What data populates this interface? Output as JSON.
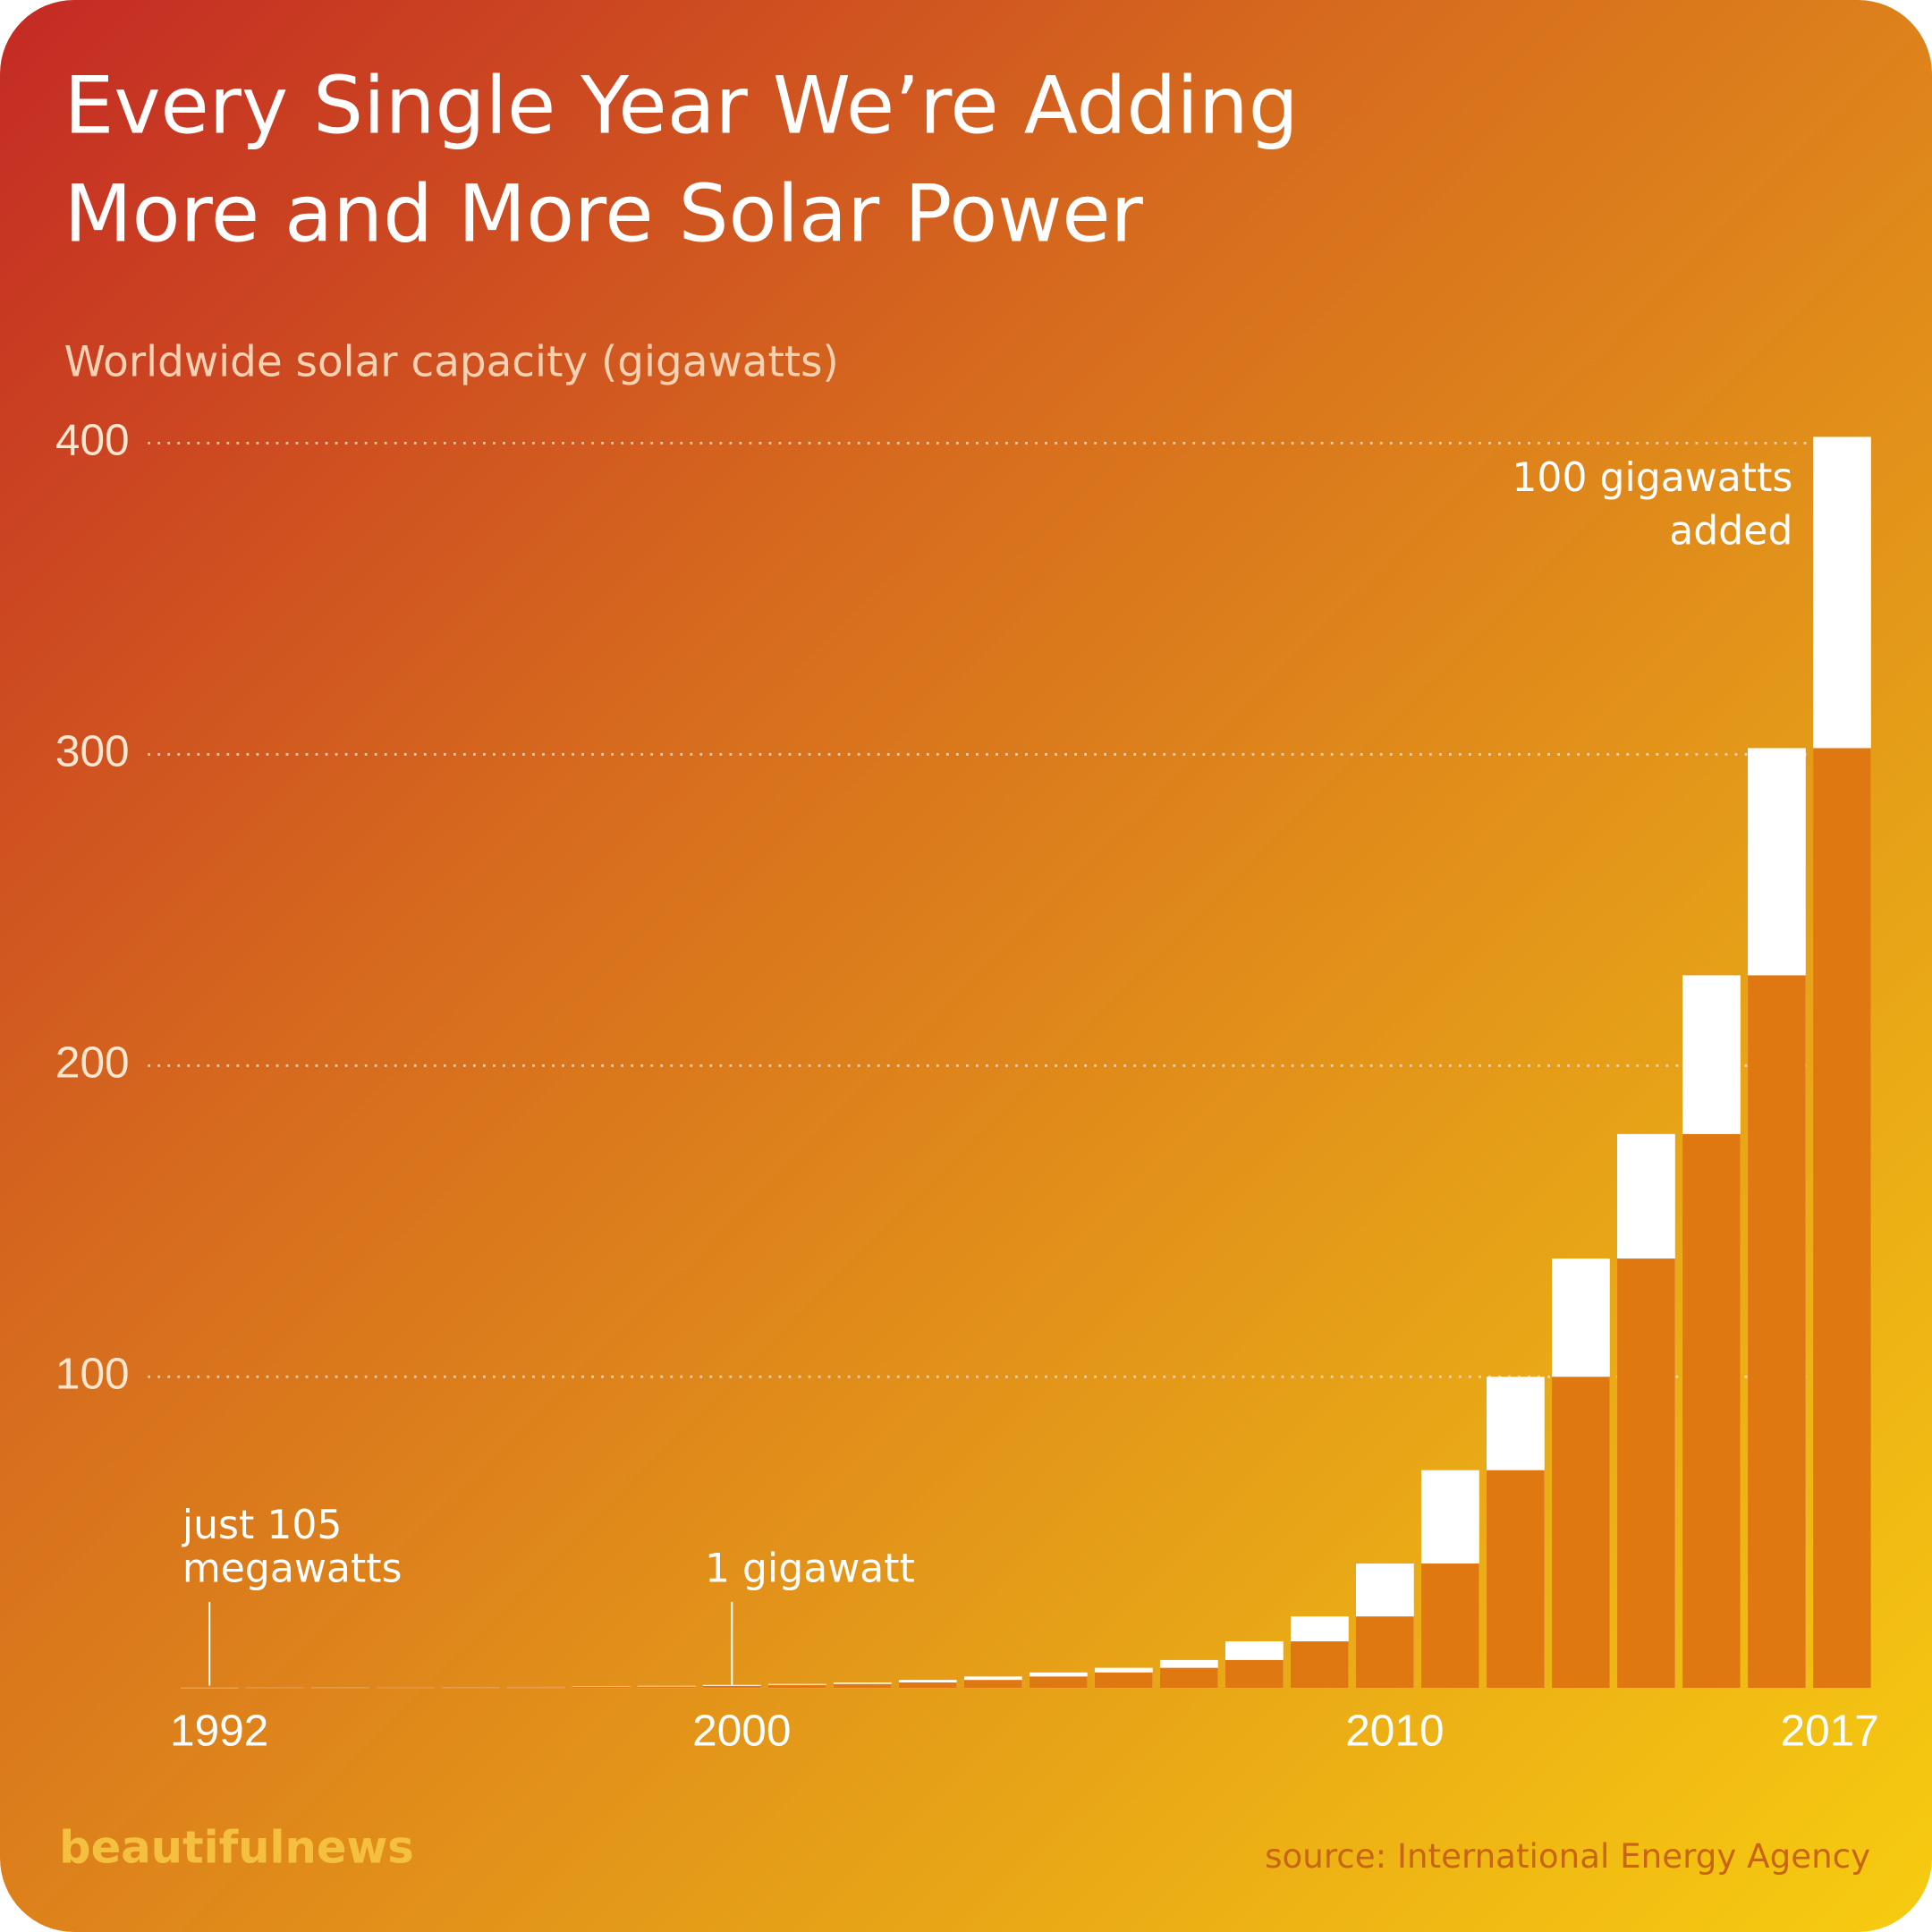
{
  "chart_data": {
    "type": "bar",
    "title": [
      "Every Single Year We’re Adding",
      "More and More Solar Power"
    ],
    "subtitle": "Worldwide solar capacity (gigawatts)",
    "categories": [
      "1992",
      null,
      null,
      null,
      null,
      null,
      null,
      null,
      "2000",
      null,
      null,
      null,
      null,
      null,
      null,
      null,
      null,
      null,
      "2010",
      null,
      null,
      null,
      null,
      null,
      null,
      "2017"
    ],
    "values": [
      0.105,
      0.13,
      0.17,
      0.21,
      0.28,
      0.37,
      0.5,
      0.7,
      1,
      1.3,
      1.8,
      2.6,
      3.7,
      5,
      6.5,
      9,
      15,
      23,
      40,
      70,
      100,
      138,
      178,
      229,
      302,
      402
    ],
    "color": "#ffffff",
    "previous_color": "#e07812",
    "ylim": [
      0,
      405
    ],
    "yticks": [
      100,
      200,
      300,
      400
    ],
    "grid": true,
    "annotations": [
      {
        "lines": [
          "just 105",
          "megawatts"
        ],
        "category": 0
      },
      {
        "lines": [
          "1 gigawatt"
        ],
        "category": 8
      },
      {
        "lines": [
          "100 gigawatts",
          "added"
        ],
        "category": 25
      }
    ],
    "brand": "beautifulnews",
    "source": "source: International Energy Agency"
  }
}
